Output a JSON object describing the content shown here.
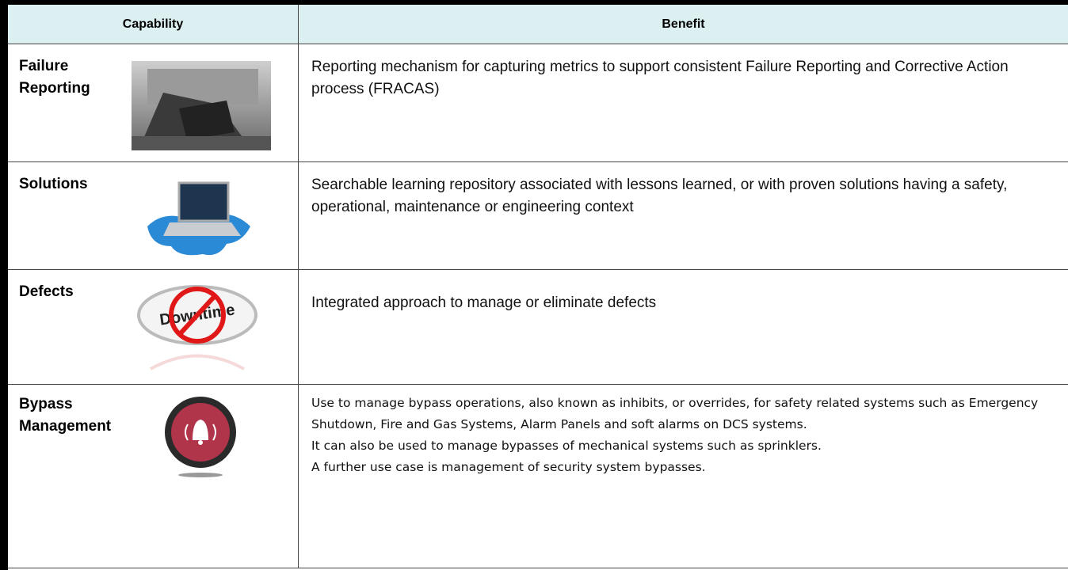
{
  "table": {
    "header": [
      "Capability",
      "Benefit"
    ],
    "rows": [
      {
        "capability": "Failure Reporting",
        "benefit": [
          "Reporting mechanism for capturing metrics to support consistent Failure Reporting and Corrective Action process (FRACAS)"
        ]
      },
      {
        "capability": "Solutions",
        "benefit": [
          "Searchable learning repository associated with lessons learned, or with proven solutions having a safety, operational, maintenance or engineering context"
        ]
      },
      {
        "capability": "Defects",
        "benefit": [
          "Integrated approach to manage or eliminate defects"
        ]
      },
      {
        "capability": "Bypass Management",
        "benefit": [
          "Use to manage bypass operations, also known as inhibits, or overrides, for safety related systems such as Emergency Shutdown, Fire and Gas Systems, Alarm Panels and soft alarms on DCS systems.",
          "It can also be used to manage bypasses of mechanical systems such as sprinklers.",
          "A further use case is management of security system bypasses."
        ]
      }
    ]
  }
}
